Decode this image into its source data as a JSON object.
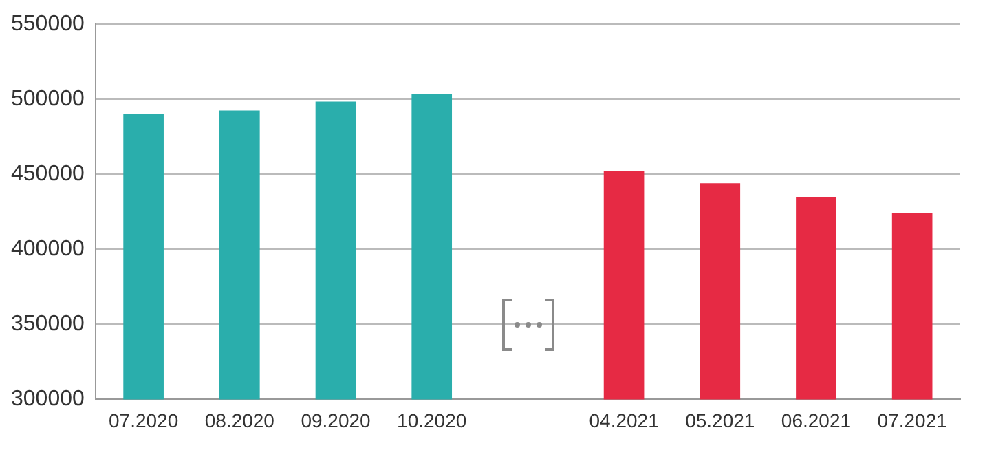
{
  "chart_data": {
    "type": "bar",
    "categories": [
      "07.2020",
      "08.2020",
      "09.2020",
      "10.2020",
      null,
      "04.2021",
      "05.2021",
      "06.2021",
      "07.2021"
    ],
    "values": [
      490000,
      492500,
      498500,
      503500,
      null,
      452000,
      444000,
      435000,
      424000
    ],
    "colors": [
      "#2aaeac",
      "#2aaeac",
      "#2aaeac",
      "#2aaeac",
      "#2aaeac",
      "#e62a44",
      "#e62a44",
      "#e62a44",
      "#e62a44"
    ],
    "ylim": [
      300000,
      550000
    ],
    "yticks": [
      300000,
      350000,
      400000,
      450000,
      500000,
      550000
    ],
    "grid": "y",
    "legend": false
  }
}
